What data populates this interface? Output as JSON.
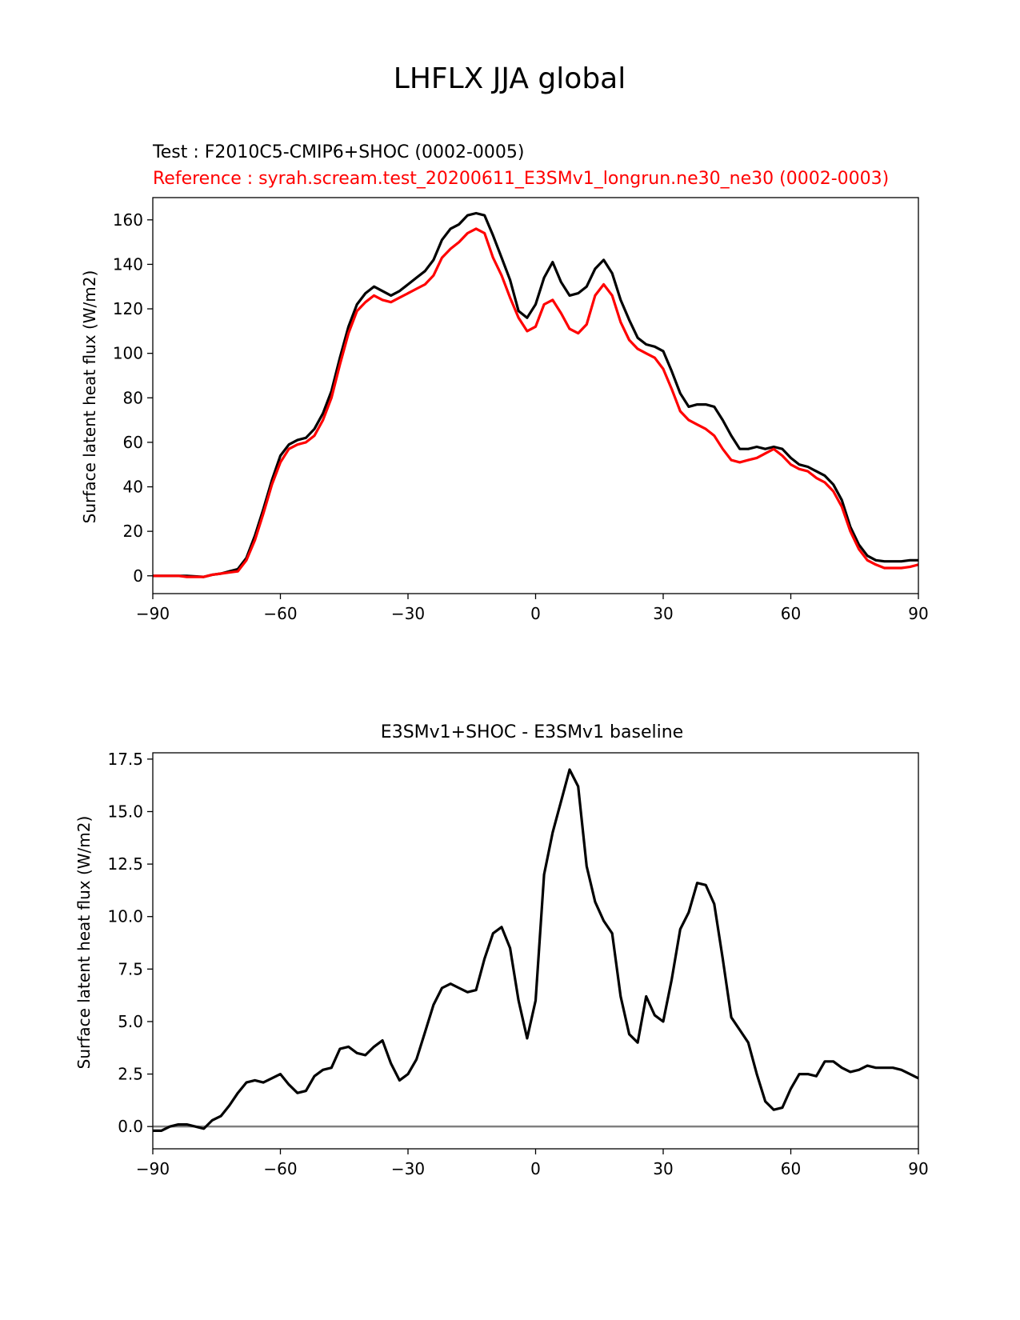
{
  "suptitle": "LHFLX JJA global",
  "colors": {
    "test": "#000000",
    "reference": "#ff0000",
    "zero_line": "#808080"
  },
  "chart_data": [
    {
      "type": "line",
      "title_test": "Test : F2010C5-CMIP6+SHOC (0002-0005)",
      "title_reference": "Reference : syrah.scream.test_20200611_E3SMv1_longrun.ne30_ne30 (0002-0003)",
      "xlabel": "",
      "ylabel": "Surface latent heat flux (W/m2)",
      "xlim": [
        -90,
        90
      ],
      "ylim": [
        -8,
        170
      ],
      "xticks": [
        -90,
        -60,
        -30,
        0,
        30,
        60,
        90
      ],
      "xtick_labels": [
        "−90",
        "−60",
        "−30",
        "0",
        "30",
        "60",
        "90"
      ],
      "yticks": [
        0,
        20,
        40,
        60,
        80,
        100,
        120,
        140,
        160
      ],
      "ytick_labels": [
        "0",
        "20",
        "40",
        "60",
        "80",
        "100",
        "120",
        "140",
        "160"
      ],
      "series": [
        {
          "name": "Test",
          "color": "#000000",
          "x": [
            -90,
            -86,
            -84,
            -82,
            -78,
            -76,
            -74,
            -72,
            -70,
            -68,
            -66,
            -64,
            -62,
            -60,
            -58,
            -56,
            -54,
            -52,
            -50,
            -48,
            -46,
            -44,
            -42,
            -40,
            -38,
            -36,
            -34,
            -32,
            -30,
            -28,
            -26,
            -24,
            -22,
            -20,
            -18,
            -16,
            -14,
            -12,
            -10,
            -8,
            -6,
            -4,
            -2,
            0,
            2,
            4,
            6,
            8,
            10,
            12,
            14,
            16,
            18,
            20,
            22,
            24,
            26,
            28,
            30,
            32,
            34,
            36,
            38,
            40,
            42,
            44,
            46,
            48,
            50,
            52,
            54,
            56,
            58,
            60,
            62,
            64,
            66,
            68,
            70,
            72,
            74,
            76,
            78,
            80,
            82,
            84,
            86,
            88,
            90
          ],
          "values": [
            0,
            0,
            0,
            0,
            -0.5,
            0.5,
            1,
            2,
            3,
            8,
            18,
            30,
            43,
            54,
            59,
            61,
            62,
            66,
            73,
            83,
            98,
            112,
            122,
            127,
            130,
            128,
            126,
            128,
            131,
            134,
            137,
            142,
            151,
            156,
            158,
            162,
            163,
            162,
            153,
            143,
            133,
            119,
            116,
            122,
            134,
            141,
            132,
            126,
            127,
            130,
            138,
            142,
            136,
            124,
            115,
            107,
            104,
            103,
            101,
            92,
            82,
            76,
            77,
            77,
            76,
            70,
            63,
            57,
            57,
            58,
            57,
            58,
            57,
            53,
            50,
            49,
            47,
            45,
            41,
            34,
            22,
            14,
            9,
            7,
            6.5,
            6.5,
            6.5,
            7,
            7
          ]
        },
        {
          "name": "Reference",
          "color": "#ff0000",
          "x": [
            -90,
            -86,
            -84,
            -82,
            -78,
            -76,
            -74,
            -72,
            -70,
            -68,
            -66,
            -64,
            -62,
            -60,
            -58,
            -56,
            -54,
            -52,
            -50,
            -48,
            -46,
            -44,
            -42,
            -40,
            -38,
            -36,
            -34,
            -32,
            -30,
            -28,
            -26,
            -24,
            -22,
            -20,
            -18,
            -16,
            -14,
            -12,
            -10,
            -8,
            -6,
            -4,
            -2,
            0,
            2,
            4,
            6,
            8,
            10,
            12,
            14,
            16,
            18,
            20,
            22,
            24,
            26,
            28,
            30,
            32,
            34,
            36,
            38,
            40,
            42,
            44,
            46,
            48,
            50,
            52,
            54,
            56,
            58,
            60,
            62,
            64,
            66,
            68,
            70,
            72,
            74,
            76,
            78,
            80,
            82,
            84,
            86,
            88,
            90
          ],
          "values": [
            0,
            0,
            0,
            -0.5,
            -0.5,
            0.5,
            1,
            1.5,
            2,
            7,
            16,
            28,
            41,
            51,
            57,
            59,
            60,
            63,
            70,
            80,
            95,
            109,
            119,
            123,
            126,
            124,
            123,
            125,
            127,
            129,
            131,
            135,
            143,
            147,
            150,
            154,
            156,
            154,
            143,
            135,
            125,
            116,
            110,
            112,
            122,
            124,
            118,
            111,
            109,
            113,
            126,
            131,
            126,
            114,
            106,
            102,
            100,
            98,
            93,
            84,
            74,
            70,
            68,
            66,
            63,
            57,
            52,
            51,
            52,
            53,
            55,
            57,
            54,
            50,
            48,
            47,
            44,
            42,
            38,
            31,
            20,
            12,
            7,
            5,
            3.5,
            3.5,
            3.5,
            4,
            5
          ]
        }
      ]
    },
    {
      "type": "line",
      "title": "E3SMv1+SHOC - E3SMv1 baseline",
      "xlabel": "",
      "ylabel": "Surface latent heat flux (W/m2)",
      "xlim": [
        -90,
        90
      ],
      "ylim": [
        -1.06,
        17.8
      ],
      "xticks": [
        -90,
        -60,
        -30,
        0,
        30,
        60,
        90
      ],
      "xtick_labels": [
        "−90",
        "−60",
        "−30",
        "0",
        "30",
        "60",
        "90"
      ],
      "yticks": [
        0,
        2.5,
        5,
        7.5,
        10,
        12.5,
        15,
        17.5
      ],
      "ytick_labels": [
        "0.0",
        "2.5",
        "5.0",
        "7.5",
        "10.0",
        "12.5",
        "15.0",
        "17.5"
      ],
      "reference_line": {
        "y": 0,
        "color": "#808080"
      },
      "series": [
        {
          "name": "Difference",
          "color": "#000000",
          "x": [
            -90,
            -88,
            -86,
            -84,
            -82,
            -80,
            -78,
            -76,
            -74,
            -72,
            -70,
            -68,
            -66,
            -64,
            -62,
            -60,
            -58,
            -56,
            -54,
            -52,
            -50,
            -48,
            -46,
            -44,
            -42,
            -40,
            -38,
            -36,
            -34,
            -32,
            -30,
            -28,
            -26,
            -24,
            -22,
            -20,
            -18,
            -16,
            -14,
            -12,
            -10,
            -8,
            -6,
            -4,
            -2,
            0,
            2,
            4,
            6,
            8,
            10,
            12,
            14,
            16,
            18,
            20,
            22,
            24,
            26,
            28,
            30,
            32,
            34,
            36,
            38,
            40,
            42,
            44,
            46,
            48,
            50,
            52,
            54,
            56,
            58,
            60,
            62,
            64,
            66,
            68,
            70,
            72,
            74,
            76,
            78,
            80,
            82,
            84,
            86,
            88,
            90
          ],
          "values": [
            -0.2,
            -0.2,
            0,
            0.1,
            0.1,
            0,
            -0.1,
            0.3,
            0.5,
            1.0,
            1.6,
            2.1,
            2.2,
            2.1,
            2.3,
            2.5,
            2.0,
            1.6,
            1.7,
            2.4,
            2.7,
            2.8,
            3.7,
            3.8,
            3.5,
            3.4,
            3.8,
            4.1,
            3.0,
            2.2,
            2.5,
            3.2,
            4.5,
            5.8,
            6.6,
            6.8,
            6.6,
            6.4,
            6.5,
            8.0,
            9.2,
            9.5,
            8.5,
            6.0,
            4.2,
            6.0,
            12.0,
            14.0,
            15.5,
            17.0,
            16.2,
            12.4,
            10.7,
            9.8,
            9.2,
            6.2,
            4.4,
            4.0,
            6.2,
            5.3,
            5.0,
            7.0,
            9.4,
            10.2,
            11.6,
            11.5,
            10.6,
            8.0,
            5.2,
            4.6,
            4.0,
            2.5,
            1.2,
            0.8,
            0.9,
            1.8,
            2.5,
            2.5,
            2.4,
            3.1,
            3.1,
            2.8,
            2.6,
            2.7,
            2.9,
            2.8,
            2.8,
            2.8,
            2.7,
            2.5,
            2.3
          ]
        }
      ]
    }
  ]
}
